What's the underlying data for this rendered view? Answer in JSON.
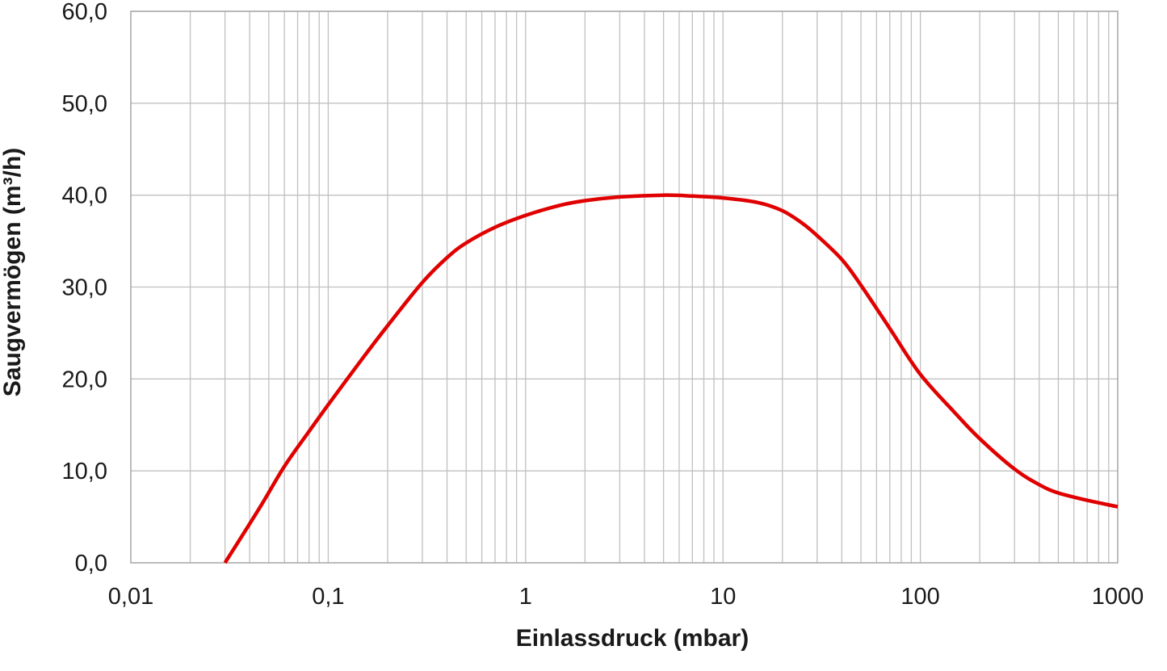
{
  "chart_data": {
    "type": "line",
    "xlabel": "Einlassdruck (mbar)",
    "ylabel": "Saugvermögen (m³/h)",
    "x_scale": "log",
    "xlim": [
      0.01,
      1000
    ],
    "ylim": [
      0,
      60
    ],
    "grid": true,
    "x_tick_values": [
      0.01,
      0.1,
      1,
      10,
      100,
      1000
    ],
    "x_tick_labels": [
      "0,01",
      "0,1",
      "1",
      "10",
      "100",
      "1000"
    ],
    "y_tick_values": [
      0,
      10,
      20,
      30,
      40,
      50,
      60
    ],
    "y_tick_labels": [
      "0,0",
      "10,0",
      "20,0",
      "30,0",
      "40,0",
      "50,0",
      "60,0"
    ],
    "series": [
      {
        "color": "#e00000",
        "x": [
          0.03,
          0.045,
          0.06,
          0.08,
          0.1,
          0.15,
          0.2,
          0.3,
          0.4,
          0.5,
          0.7,
          1,
          1.5,
          2,
          3,
          5,
          7,
          10,
          15,
          20,
          25,
          30,
          40,
          50,
          70,
          100,
          150,
          200,
          300,
          400,
          500,
          700,
          1000
        ],
        "y": [
          0,
          6,
          10.5,
          14.3,
          17.2,
          22.3,
          25.8,
          30.5,
          33.2,
          34.8,
          36.5,
          37.8,
          38.9,
          39.4,
          39.8,
          40.0,
          39.9,
          39.7,
          39.2,
          38.3,
          37.0,
          35.6,
          33.0,
          30.2,
          25.5,
          20.5,
          16.3,
          13.5,
          10.2,
          8.5,
          7.6,
          6.8,
          6.1
        ]
      }
    ]
  }
}
